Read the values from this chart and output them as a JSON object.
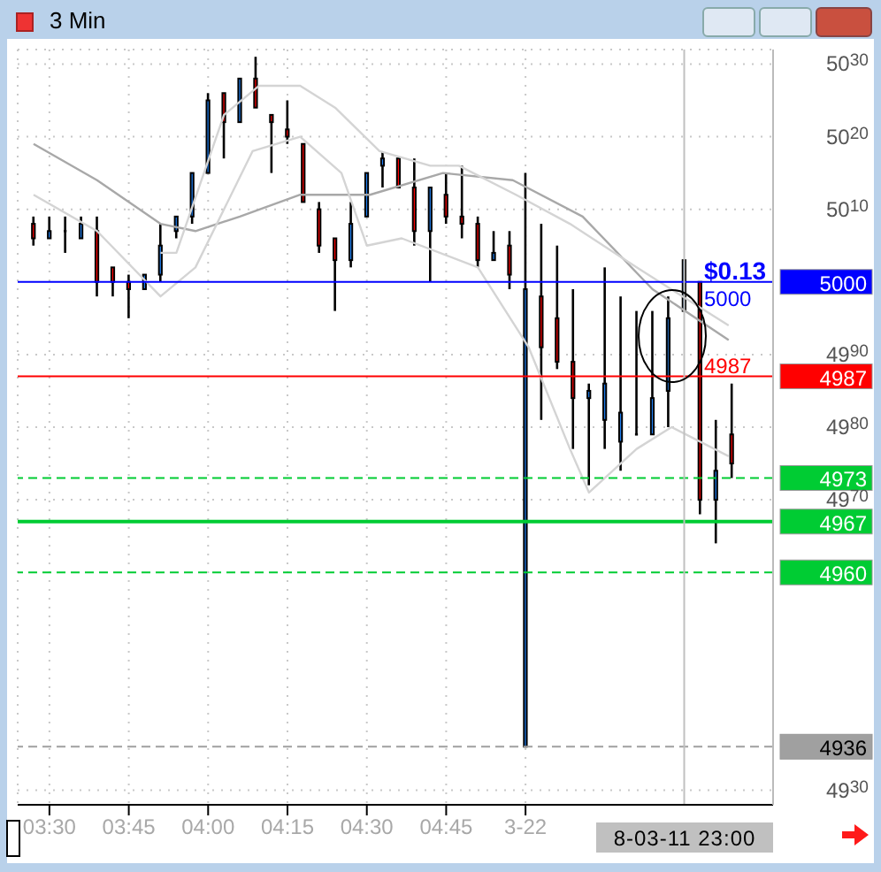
{
  "chart_data": {
    "type": "candlestick",
    "title": "3 Min",
    "x": [
      3.45,
      3.5,
      3.55,
      3.6,
      3.65,
      3.7,
      3.75,
      3.8,
      3.85,
      3.9,
      3.95,
      4.0,
      4.05,
      4.1,
      4.15,
      4.2,
      4.25,
      4.3,
      4.35,
      4.4,
      4.45,
      4.5,
      4.55,
      4.6,
      4.65,
      4.7,
      4.75,
      4.8,
      4.85,
      4.9,
      4.95,
      5.0,
      5.05,
      5.1,
      5.15,
      5.2,
      5.25,
      5.3,
      5.35,
      5.4,
      5.45,
      5.5,
      5.55,
      5.6,
      5.65
    ],
    "ohlc": [
      [
        5008,
        5009,
        5005,
        5006
      ],
      [
        5006,
        5009,
        5006,
        5007
      ],
      [
        5007,
        5009,
        5004,
        5007
      ],
      [
        5006,
        5009,
        5006,
        5008
      ],
      [
        5007,
        5009,
        4998,
        5000
      ],
      [
        5002,
        5002,
        4998,
        5000
      ],
      [
        5000,
        5001,
        4995,
        4999
      ],
      [
        4999,
        5001,
        4999,
        5001
      ],
      [
        5001,
        5008,
        5000,
        5005
      ],
      [
        5007,
        5009,
        5006,
        5009
      ],
      [
        5009,
        5015,
        5008,
        5015
      ],
      [
        5015,
        5026,
        5015,
        5025
      ],
      [
        5026,
        5026,
        5017,
        5022
      ],
      [
        5022,
        5028,
        5022,
        5028
      ],
      [
        5028,
        5031,
        5024,
        5024
      ],
      [
        5023,
        5023,
        5015,
        5022
      ],
      [
        5021,
        5025,
        5019,
        5020
      ],
      [
        5019,
        5019,
        5011,
        5011
      ],
      [
        5010,
        5011,
        5004,
        5005
      ],
      [
        5006,
        5006,
        4996,
        5003
      ],
      [
        5003,
        5011,
        5002,
        5008
      ],
      [
        5009,
        5015,
        5009,
        5015
      ],
      [
        5016,
        5018,
        5013,
        5017
      ],
      [
        5017,
        5017,
        5013,
        5013
      ],
      [
        5013,
        5017,
        5005,
        5007
      ],
      [
        5007,
        5013,
        5000,
        5013
      ],
      [
        5012,
        5015,
        5008,
        5009
      ],
      [
        5009,
        5016,
        5006,
        5008
      ],
      [
        5008,
        5009,
        5002,
        5003
      ],
      [
        5003,
        5007,
        5003,
        5004
      ],
      [
        5005,
        5007,
        4999,
        5001
      ],
      [
        4936,
        5015,
        4936,
        4999
      ],
      [
        4998,
        5008,
        4981,
        4991
      ],
      [
        4995,
        5005,
        4988,
        4989
      ],
      [
        4989,
        4999,
        4977,
        4984
      ],
      [
        4984,
        4986,
        4972,
        4985
      ],
      [
        4981,
        5002,
        4977,
        4986
      ],
      [
        4978,
        4998,
        4974,
        4982
      ],
      [
        4979,
        4996,
        4979,
        4979
      ],
      [
        4979,
        4996,
        4979,
        4984
      ],
      [
        4985,
        4998,
        4980,
        4995
      ],
      [
        4996,
        5003,
        4996,
        5003
      ],
      [
        5000,
        5000,
        4968,
        4970
      ],
      [
        4970,
        4981,
        4964,
        4974
      ],
      [
        4979,
        4986,
        4973,
        4975
      ]
    ],
    "colors": [
      "#ff0000",
      "#1e7ef0",
      "#000000",
      "#1e7ef0",
      "#ff0000",
      "#ff0000",
      "#ff0000",
      "#1e7ef0",
      "#1e7ef0",
      "#1e7ef0",
      "#1e7ef0",
      "#1e7ef0",
      "#ff0000",
      "#1e7ef0",
      "#ff0000",
      "#ff0000",
      "#ff0000",
      "#ff0000",
      "#ff0000",
      "#ff0000",
      "#1e7ef0",
      "#1e7ef0",
      "#1e7ef0",
      "#ff0000",
      "#ff0000",
      "#1e7ef0",
      "#ff0000",
      "#ff0000",
      "#ff0000",
      "#1e7ef0",
      "#ff0000",
      "#1e7ef0",
      "#ff0000",
      "#ff0000",
      "#ff0000",
      "#1e7ef0",
      "#1e7ef0",
      "#1e7ef0",
      "#000000",
      "#1e7ef0",
      "#1f5fa8",
      "#1e7ef0",
      "#ff0000",
      "#1e7ef0",
      "#ff0000"
    ],
    "series": [
      {
        "type": "line",
        "color": "#a8a8a8",
        "x": [
          3.45,
          3.65,
          3.85,
          3.96,
          4.1,
          4.29,
          4.51,
          4.74,
          4.96,
          5.18,
          5.4,
          5.64
        ],
        "values": [
          5019,
          5014,
          5008,
          5007,
          5009,
          5012,
          5012,
          5015,
          5014,
          5009,
          4999,
          4992
        ]
      },
      {
        "type": "line",
        "color": "#d4d4d4",
        "x": [
          3.45,
          3.65,
          3.85,
          3.96,
          4.14,
          4.29,
          4.42,
          4.5,
          4.61,
          4.85,
          5.01,
          5.14,
          5.2,
          5.35,
          5.46,
          5.64
        ],
        "values": [
          5012,
          5007,
          4998,
          5002,
          5018,
          5020,
          5015,
          5005,
          5006,
          5002,
          4991,
          4977,
          4971,
          4977,
          4980,
          4976
        ]
      },
      {
        "type": "line",
        "color": "#d4d4d4",
        "x": [
          3.85,
          3.9,
          4.05,
          4.16,
          4.29,
          4.4,
          4.54,
          4.7,
          4.79,
          4.97,
          5.14,
          5.35,
          5.64
        ],
        "values": [
          5004,
          5004,
          5023,
          5027,
          5027,
          5024,
          5018,
          5016,
          5016,
          5012,
          5008,
          5002,
          4994
        ]
      }
    ],
    "xlim": [
      3.4,
      5.78
    ],
    "xticks": [
      {
        "value": 3.5,
        "label": "03:30"
      },
      {
        "value": 3.75,
        "label": "03:45"
      },
      {
        "value": 4.0,
        "label": "04:00"
      },
      {
        "value": 4.25,
        "label": "04:15"
      },
      {
        "value": 4.5,
        "label": "04:30"
      },
      {
        "value": 4.75,
        "label": "04:45"
      },
      {
        "value": 5.0,
        "label": "3-22"
      }
    ],
    "ylim": [
      4928,
      5032
    ],
    "yticks": [
      5030,
      5020,
      5010,
      4990,
      4980,
      4970,
      4930
    ],
    "ref_lines": [
      {
        "axis": "y",
        "value": 5000,
        "label": "5000",
        "color": "#0000ff",
        "line_style": "solid"
      },
      {
        "axis": "y",
        "value": 4987,
        "label": "4987",
        "color": "#ff0000",
        "line_style": "solid"
      },
      {
        "axis": "y",
        "value": 4973,
        "label": "4973",
        "color": "#00cc33",
        "line_style": "dashed"
      },
      {
        "axis": "y",
        "value": 4967,
        "label": "4967",
        "color": "#00cc33",
        "line_style": "solid"
      },
      {
        "axis": "y",
        "value": 4960,
        "label": "4960",
        "color": "#00cc33",
        "line_style": "dashed"
      },
      {
        "axis": "y",
        "value": 4936,
        "label": "4936",
        "color": "#a0a0a0",
        "line_style": "dashed"
      },
      {
        "axis": "x",
        "value": 5.5,
        "color": "#c0c0c0",
        "line_style": "solid"
      }
    ],
    "annotations": [
      "$0.13",
      "5000",
      "4987",
      "8-03-11  23:00"
    ],
    "grid": true,
    "marker": "none",
    "line_style": "solid"
  }
}
